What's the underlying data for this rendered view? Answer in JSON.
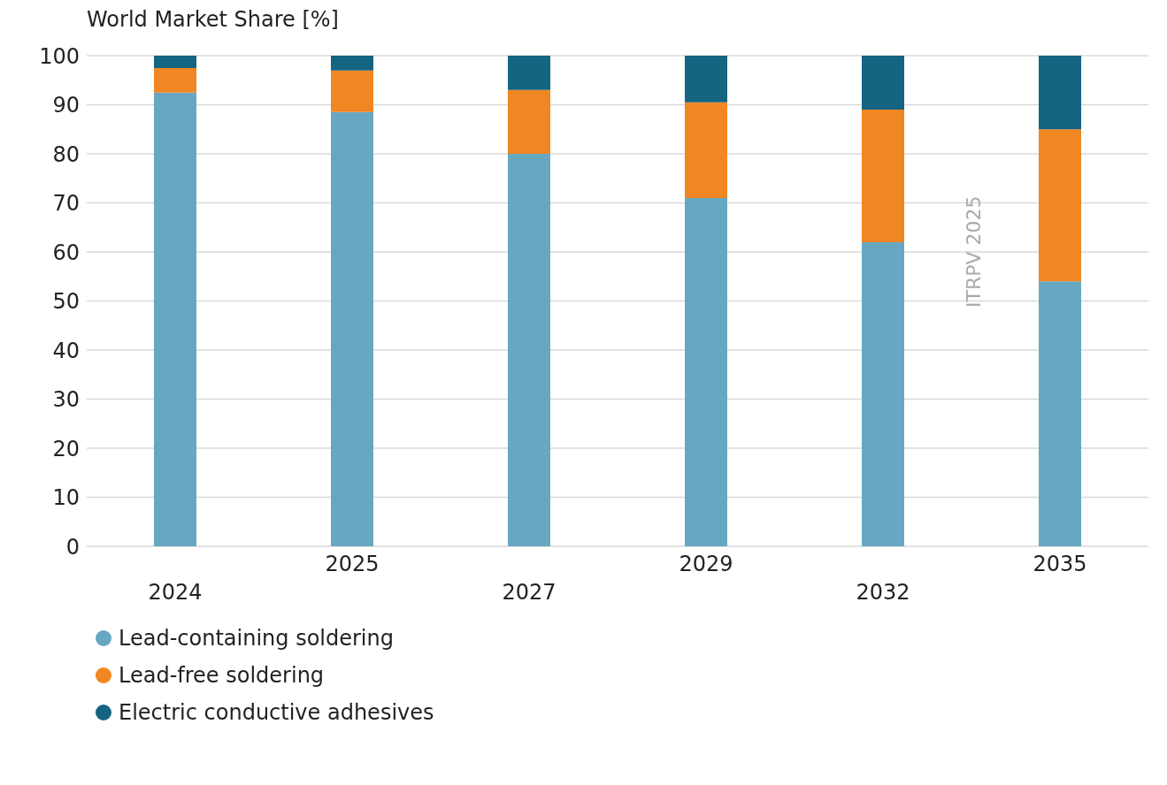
{
  "chart_data": {
    "type": "bar",
    "stacked": true,
    "ylabel": "World Market Share [%]",
    "categories": [
      "2024",
      "2025",
      "2027",
      "2029",
      "2032",
      "2035"
    ],
    "series": [
      {
        "name": "Lead-containing soldering",
        "color": "#68a7c2",
        "values": [
          92.5,
          88.5,
          80,
          71,
          62,
          54
        ]
      },
      {
        "name": "Lead-free soldering",
        "color": "#f08723",
        "values": [
          5,
          8.5,
          13,
          19.5,
          27,
          31
        ]
      },
      {
        "name": "Electric conductive adhesives",
        "color": "#146482",
        "values": [
          2.5,
          3,
          7,
          9.5,
          11,
          15
        ]
      }
    ],
    "ylim": [
      0,
      100
    ],
    "yticks": [
      0,
      10,
      20,
      30,
      40,
      50,
      60,
      70,
      80,
      90,
      100
    ],
    "grid": "y",
    "legend": "bottom left",
    "annotations": [
      "ITRPV 2025"
    ]
  }
}
